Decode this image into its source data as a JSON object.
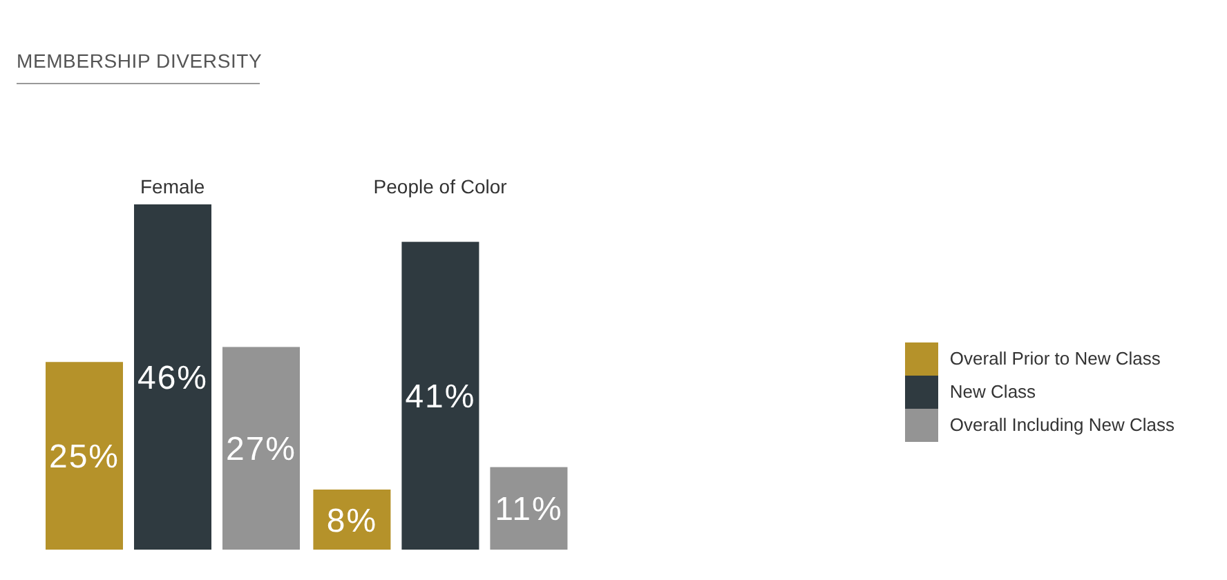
{
  "chart_data": {
    "type": "bar",
    "title": "MEMBERSHIP DIVERSITY",
    "categories": [
      "Female",
      "People of Color"
    ],
    "series": [
      {
        "name": "Overall Prior to New Class",
        "color": "#b5922a",
        "values": [
          25,
          8
        ],
        "value_labels": [
          "25%",
          "8%"
        ]
      },
      {
        "name": "New Class",
        "color": "#2f3a40",
        "values": [
          46,
          41
        ],
        "value_labels": [
          "46%",
          "41%"
        ]
      },
      {
        "name": "Overall Including New Class",
        "color": "#949494",
        "values": [
          27,
          11
        ],
        "value_labels": [
          "27%",
          "11%"
        ]
      }
    ],
    "legend": "right"
  }
}
